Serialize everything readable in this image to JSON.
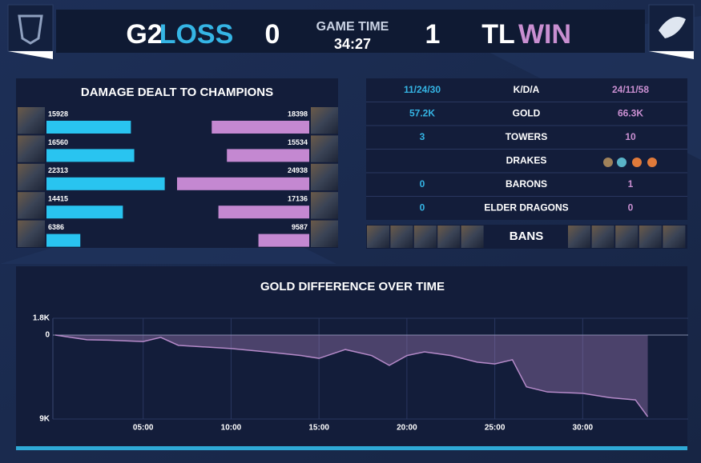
{
  "header": {
    "team_left": "G2",
    "result_left": "LOSS",
    "score_left": "0",
    "game_time_label": "GAME TIME",
    "game_time": "34:27",
    "score_right": "1",
    "team_right": "TL",
    "result_right": "WIN"
  },
  "stats": {
    "rows": [
      {
        "left": "11/24/30",
        "label": "K/D/A",
        "right": "24/11/58"
      },
      {
        "left": "57.2K",
        "label": "GOLD",
        "right": "66.3K"
      },
      {
        "left": "3",
        "label": "TOWERS",
        "right": "10"
      },
      {
        "label": "DRAKES"
      },
      {
        "left": "0",
        "label": "BARONS",
        "right": "1"
      },
      {
        "left": "0",
        "label": "ELDER DRAGONS",
        "right": "0"
      }
    ],
    "bans_label": "BANS"
  },
  "chart_data": [
    {
      "type": "bar",
      "orientation": "horizontal",
      "title": "DAMAGE DEALT TO CHAMPIONS",
      "series": [
        {
          "color": "#29c4f0",
          "values": [
            15928,
            16560,
            22313,
            14415,
            6386
          ]
        },
        {
          "color": "#c488d1",
          "values": [
            18398,
            15534,
            24938,
            17136,
            9587
          ]
        }
      ]
    },
    {
      "type": "area",
      "title": "GOLD DIFFERENCE OVER TIME",
      "color": "#b58ac9",
      "x": [
        0,
        1.8,
        3,
        5,
        6,
        7,
        10,
        12,
        14,
        15,
        16.5,
        18,
        19,
        20,
        21,
        22.5,
        24,
        25,
        26,
        26.8,
        28,
        30,
        31.5,
        33,
        33.7
      ],
      "values": [
        0,
        -500,
        -550,
        -700,
        -250,
        -1100,
        -1450,
        -1800,
        -2200,
        -2500,
        -1550,
        -2200,
        -3250,
        -2200,
        -1800,
        -2200,
        -2900,
        -3100,
        -2650,
        -5550,
        -6100,
        -6250,
        -6700,
        -6950,
        -8750
      ],
      "xlim": [
        0,
        36
      ],
      "xticks": [
        {
          "value": 5,
          "label": "05:00"
        },
        {
          "value": 10,
          "label": "10:00"
        },
        {
          "value": 15,
          "label": "15:00"
        },
        {
          "value": 20,
          "label": "20:00"
        },
        {
          "value": 25,
          "label": "25:00"
        },
        {
          "value": 30,
          "label": "30:00"
        }
      ],
      "ylim": [
        -9000,
        1800
      ],
      "yticks": [
        {
          "value": 1800,
          "label": "1.8K"
        },
        0,
        {
          "value": -9000,
          "label": "9K"
        }
      ],
      "grid": true
    }
  ]
}
